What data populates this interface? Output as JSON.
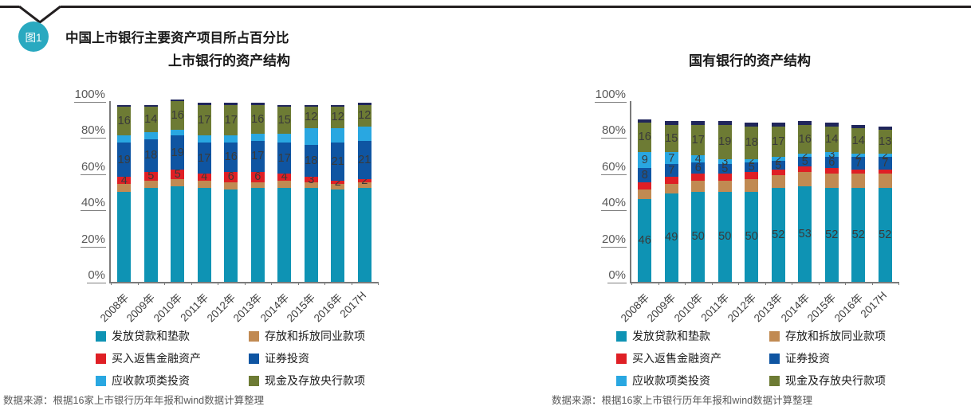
{
  "page": {
    "badge_label": "图1",
    "title": "中国上市银行主要资产项目所占百分比"
  },
  "axis": {
    "y_ticks": [
      {
        "label": "100%",
        "value": 100
      },
      {
        "label": "80%",
        "value": 80
      },
      {
        "label": "60%",
        "value": 60
      },
      {
        "label": "40%",
        "value": 40
      },
      {
        "label": "20%",
        "value": 20
      },
      {
        "label": "0%",
        "value": 0
      }
    ]
  },
  "colors": {
    "teal": "#0E93B4",
    "tan": "#C18A52",
    "red": "#DF1F25",
    "dark_blue": "#0F55A2",
    "light_blue": "#29A7E1",
    "olive": "#6D7B34",
    "navy_cap": "#20265B",
    "badge": "#29A9C0",
    "axis_gray": "#7A7A7A"
  },
  "legend": [
    {
      "label": "发放贷款和垫款",
      "color": "#0E93B4"
    },
    {
      "label": "存放和拆放同业款项",
      "color": "#C18A52"
    },
    {
      "label": "买入返售金融资产",
      "color": "#DF1F25"
    },
    {
      "label": "证券投资",
      "color": "#0F55A2"
    },
    {
      "label": "应收款项类投资",
      "color": "#29A7E1"
    },
    {
      "label": "现金及存放央行款项",
      "color": "#6D7B34"
    }
  ],
  "chart_data": [
    {
      "type": "bar",
      "stacked": true,
      "unit": "%",
      "title": "上市银行的资产结构",
      "categories": [
        "2008年",
        "2009年",
        "2010年",
        "2011年",
        "2012年",
        "2013年",
        "2014年",
        "2015年",
        "2016年",
        "2017H"
      ],
      "ylim": [
        0,
        100
      ],
      "grid": false,
      "legend_position": "bottom",
      "series": [
        {
          "name": "发放贷款和垫款",
          "color": "#0E93B4",
          "values": [
            50,
            52,
            53,
            52,
            51,
            52,
            52,
            52,
            51,
            52
          ],
          "show_labels": false
        },
        {
          "name": "存放和拆放同业款项",
          "color": "#C18A52",
          "values": [
            4,
            4,
            4,
            4,
            4,
            3,
            4,
            3,
            3,
            3
          ],
          "show_labels": false
        },
        {
          "name": "买入返售金融资产",
          "color": "#DF1F25",
          "values": [
            4,
            5,
            5,
            4,
            6,
            6,
            4,
            3,
            2,
            2
          ],
          "show_labels": true
        },
        {
          "name": "证券投资",
          "color": "#0F55A2",
          "values": [
            19,
            18,
            19,
            17,
            16,
            17,
            17,
            18,
            21,
            21
          ],
          "show_labels": true
        },
        {
          "name": "应收款项类投资",
          "color": "#29A7E1",
          "values": [
            4,
            4,
            3,
            4,
            4,
            4,
            5,
            9,
            8,
            8
          ],
          "show_labels": false
        },
        {
          "name": "现金及存放央行款项",
          "color": "#6D7B34",
          "values": [
            16,
            14,
            16,
            17,
            17,
            16,
            15,
            12,
            12,
            12
          ],
          "show_labels": true
        },
        {
          "name": "其他",
          "color": "#20265B",
          "values": [
            1,
            1,
            1,
            1,
            1,
            1,
            1,
            1,
            1,
            1
          ],
          "show_labels": false,
          "in_legend": false
        }
      ],
      "source": "数据来源：根据16家上市银行历年年报和wind数据计算整理"
    },
    {
      "type": "bar",
      "stacked": true,
      "unit": "%",
      "title": "国有银行的资产结构",
      "categories": [
        "2008年",
        "2009年",
        "2010年",
        "2011年",
        "2012年",
        "2013年",
        "2014年",
        "2015年",
        "2016年",
        "2017H"
      ],
      "ylim": [
        0,
        100
      ],
      "grid": false,
      "legend_position": "bottom",
      "series": [
        {
          "name": "发放贷款和垫款",
          "color": "#0E93B4",
          "values": [
            46,
            49,
            50,
            50,
            50,
            52,
            53,
            52,
            52,
            52
          ],
          "show_labels": true
        },
        {
          "name": "存放和拆放同业款项",
          "color": "#C18A52",
          "values": [
            5,
            5,
            6,
            6,
            7,
            7,
            8,
            8,
            8,
            8
          ],
          "show_labels": false
        },
        {
          "name": "买入返售金融资产",
          "color": "#DF1F25",
          "values": [
            4,
            4,
            4,
            4,
            4,
            3,
            3,
            3,
            2,
            2
          ],
          "show_labels": false
        },
        {
          "name": "证券投资",
          "color": "#0F55A2",
          "values": [
            8,
            7,
            6,
            5,
            5,
            5,
            5,
            6,
            7,
            7
          ],
          "show_labels": true
        },
        {
          "name": "应收款项类投资",
          "color": "#29A7E1",
          "values": [
            9,
            7,
            4,
            3,
            2,
            2,
            2,
            3,
            2,
            2
          ],
          "show_labels": true
        },
        {
          "name": "现金及存放央行款项",
          "color": "#6D7B34",
          "values": [
            16,
            15,
            17,
            19,
            18,
            17,
            16,
            14,
            14,
            13
          ],
          "show_labels": true
        },
        {
          "name": "其他",
          "color": "#20265B",
          "values": [
            2,
            2,
            2,
            2,
            2,
            2,
            2,
            2,
            2,
            2
          ],
          "show_labels": false,
          "in_legend": false
        }
      ],
      "source": "数据来源：根据16家上市银行历年年报和wind数据计算整理"
    }
  ]
}
